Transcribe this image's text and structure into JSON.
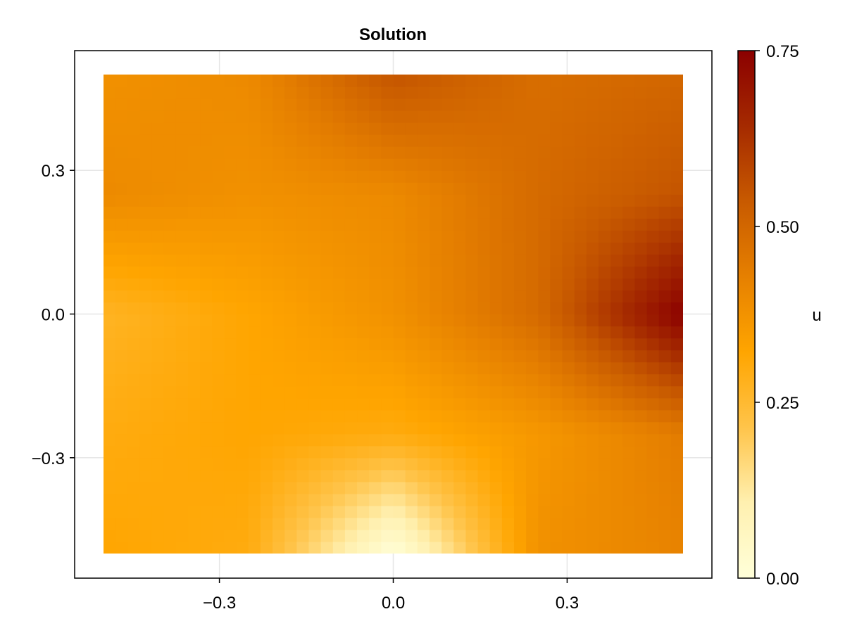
{
  "chart_data": {
    "type": "heatmap",
    "title": "Solution",
    "colorbar_label": "u",
    "xlim": [
      -0.5,
      0.5
    ],
    "ylim": [
      -0.5,
      0.5
    ],
    "x_ticks": [
      -0.3,
      0.0,
      0.3
    ],
    "x_tick_labels": [
      "−0.3",
      "0.0",
      "0.3"
    ],
    "y_ticks": [
      -0.3,
      0.0,
      0.3
    ],
    "y_tick_labels": [
      "−0.3",
      "0.0",
      "0.3"
    ],
    "colorbar_range": [
      0.0,
      0.75
    ],
    "colorbar_ticks": [
      0.0,
      0.25,
      0.5,
      0.75
    ],
    "colorbar_tick_labels": [
      "0.00",
      "0.25",
      "0.50",
      "0.75"
    ],
    "grid": true,
    "colormap": [
      "#ffffd9",
      "#fff0b0",
      "#ffc44a",
      "#ffa500",
      "#e68000",
      "#c85a00",
      "#a52a00",
      "#8b0000"
    ],
    "x": [
      -0.5,
      -0.25,
      0.0,
      0.25,
      0.5
    ],
    "y": [
      -0.5,
      -0.25,
      0.0,
      0.25,
      0.5
    ],
    "z": [
      [
        0.32,
        0.3,
        0.0,
        0.38,
        0.42
      ],
      [
        0.3,
        0.32,
        0.3,
        0.36,
        0.44
      ],
      [
        0.27,
        0.32,
        0.38,
        0.49,
        0.75
      ],
      [
        0.4,
        0.38,
        0.4,
        0.49,
        0.55
      ],
      [
        0.38,
        0.4,
        0.55,
        0.48,
        0.5
      ]
    ]
  }
}
